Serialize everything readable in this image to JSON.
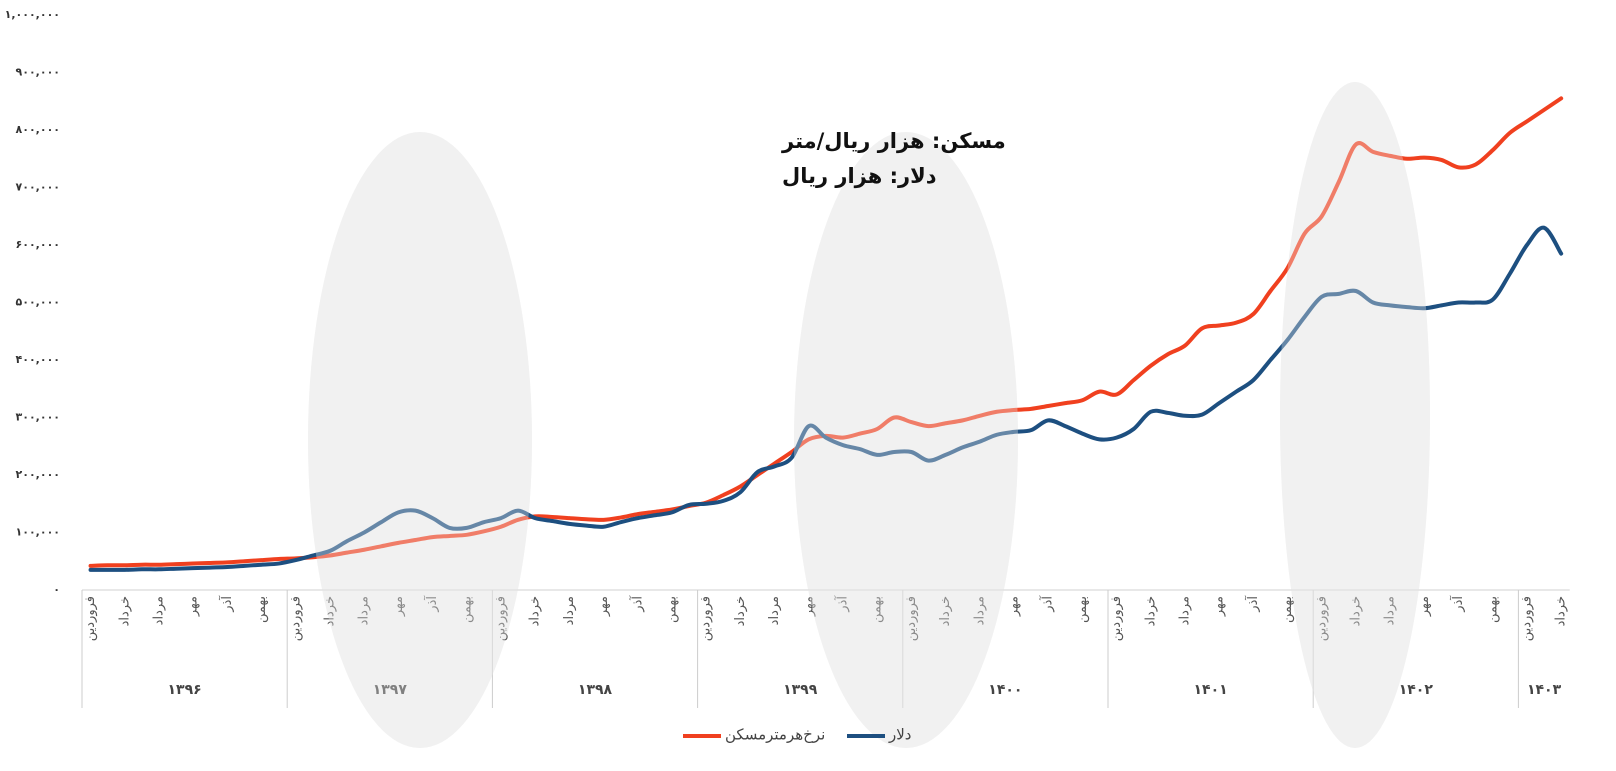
{
  "chart_data": {
    "type": "line",
    "annotations": [
      "مسکن: هزار ریال/متر",
      "دلار: هزار ریال"
    ],
    "categories": [
      "فروردین",
      null,
      "خرداد",
      null,
      "مرداد",
      null,
      "مهر",
      null,
      "آذر",
      null,
      "بهمن",
      null,
      "فروردین",
      null,
      "خرداد",
      null,
      "مرداد",
      null,
      "مهر",
      null,
      "آذر",
      null,
      "بهمن",
      null,
      "فروردین",
      null,
      "خرداد",
      null,
      "مرداد",
      null,
      "مهر",
      null,
      "آذر",
      null,
      "بهمن",
      null,
      "فروردین",
      null,
      "خرداد",
      null,
      "مرداد",
      null,
      "مهر",
      null,
      "آذر",
      null,
      "بهمن",
      null,
      "فروردین",
      null,
      "خرداد",
      null,
      "مرداد",
      null,
      "مهر",
      null,
      "آذر",
      null,
      "بهمن",
      null,
      "فروردین",
      null,
      "خرداد",
      null,
      "مرداد",
      null,
      "مهر",
      null,
      "آذر",
      null,
      "بهمن",
      null,
      "فروردین",
      null,
      "خرداد",
      null,
      "مرداد",
      null,
      "مهر",
      null,
      "آذر",
      null,
      "بهمن",
      null,
      "فروردین",
      null,
      "خرداد"
    ],
    "groups": [
      {
        "label": "۱۳۹۶",
        "months": 12
      },
      {
        "label": "۱۳۹۷",
        "months": 12
      },
      {
        "label": "۱۳۹۸",
        "months": 12
      },
      {
        "label": "۱۳۹۹",
        "months": 12
      },
      {
        "label": "۱۴۰۰",
        "months": 12
      },
      {
        "label": "۱۴۰۱",
        "months": 12
      },
      {
        "label": "۱۴۰۲",
        "months": 12
      },
      {
        "label": "۱۴۰۳",
        "months": 3
      }
    ],
    "series": [
      {
        "name": "نرخ‌هرمترمسکن",
        "color": "#f0401f",
        "values": [
          42000,
          43000,
          43000,
          44000,
          44000,
          45000,
          46000,
          47000,
          48000,
          50000,
          52000,
          54000,
          55000,
          57000,
          60000,
          65000,
          70000,
          76000,
          82000,
          87000,
          92000,
          94000,
          96000,
          102000,
          110000,
          122000,
          128000,
          127000,
          125000,
          123000,
          122000,
          126000,
          132000,
          136000,
          140000,
          146000,
          152000,
          165000,
          180000,
          200000,
          220000,
          240000,
          262000,
          268000,
          265000,
          272000,
          280000,
          300000,
          292000,
          285000,
          290000,
          295000,
          303000,
          310000,
          313000,
          315000,
          320000,
          325000,
          330000,
          345000,
          340000,
          365000,
          390000,
          410000,
          425000,
          455000,
          460000,
          465000,
          480000,
          520000,
          560000,
          620000,
          650000,
          710000,
          775000,
          762000,
          755000,
          750000,
          752000,
          748000,
          735000,
          740000,
          765000,
          795000,
          815000,
          835000,
          855000
        ]
      },
      {
        "name": "دلار",
        "color": "#1d4f80",
        "values": [
          35000,
          35000,
          35000,
          36000,
          36000,
          37000,
          38000,
          39000,
          40000,
          42000,
          44000,
          46000,
          52000,
          60000,
          68000,
          85000,
          100000,
          118000,
          135000,
          138000,
          125000,
          108000,
          108000,
          118000,
          125000,
          138000,
          125000,
          120000,
          115000,
          112000,
          110000,
          118000,
          125000,
          130000,
          135000,
          148000,
          150000,
          155000,
          170000,
          205000,
          215000,
          230000,
          285000,
          265000,
          252000,
          245000,
          235000,
          240000,
          240000,
          225000,
          235000,
          248000,
          258000,
          270000,
          275000,
          278000,
          295000,
          285000,
          272000,
          262000,
          265000,
          280000,
          310000,
          308000,
          303000,
          305000,
          325000,
          345000,
          365000,
          400000,
          435000,
          475000,
          510000,
          515000,
          520000,
          500000,
          495000,
          492000,
          490000,
          495000,
          500000,
          500000,
          505000,
          550000,
          600000,
          630000,
          585000
        ]
      }
    ],
    "ylim": [
      0,
      1000000
    ],
    "yticks": [
      {
        "value": 0,
        "label": "۰"
      },
      {
        "value": 100000,
        "label": "۱۰۰,۰۰۰"
      },
      {
        "value": 200000,
        "label": "۲۰۰,۰۰۰"
      },
      {
        "value": 300000,
        "label": "۳۰۰,۰۰۰"
      },
      {
        "value": 400000,
        "label": "۴۰۰,۰۰۰"
      },
      {
        "value": 500000,
        "label": "۵۰۰,۰۰۰"
      },
      {
        "value": 600000,
        "label": "۶۰۰,۰۰۰"
      },
      {
        "value": 700000,
        "label": "۷۰۰,۰۰۰"
      },
      {
        "value": 800000,
        "label": "۸۰۰,۰۰۰"
      },
      {
        "value": 900000,
        "label": "۹۰۰,۰۰۰"
      },
      {
        "value": 1000000,
        "label": "۱,۰۰۰,۰۰۰"
      }
    ],
    "grid": false,
    "legend": "bottom"
  }
}
